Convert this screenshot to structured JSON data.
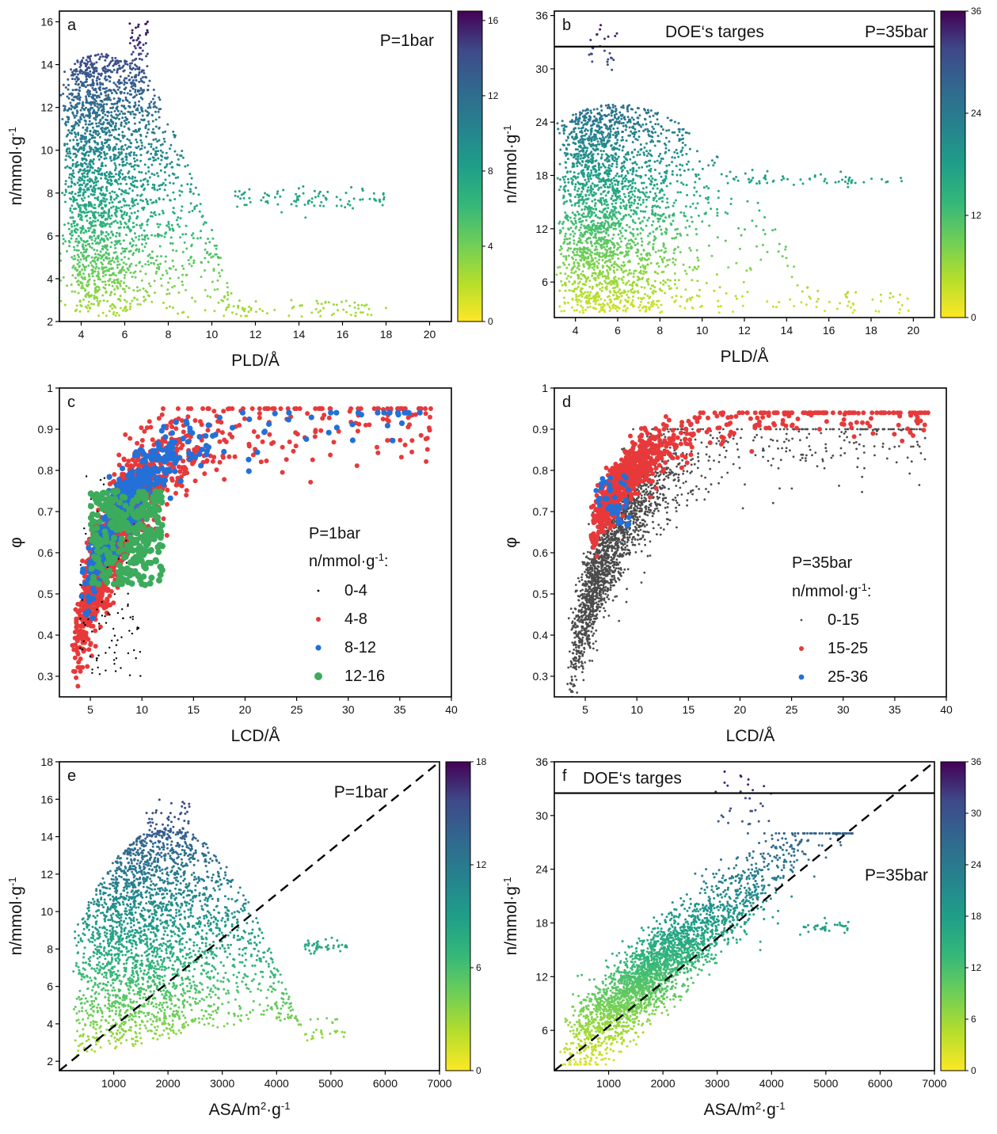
{
  "colors": {
    "viridis_low": "#fde725",
    "viridis_mid": "#21918c",
    "viridis_high": "#440154",
    "class_black": "#000000",
    "class_red": "#e8393a",
    "class_blue": "#2270d8",
    "class_green": "#3cab5c",
    "class_grey": "#4b4b4b"
  },
  "chart_data": [
    {
      "panel": "a",
      "type": "scatter",
      "xlabel": "PLD/Å",
      "ylabel": "n/mmol·g",
      "ylabel_sup": "-1",
      "annotation": "P=1bar",
      "xlim": [
        3,
        21
      ],
      "ylim": [
        2,
        16.5
      ],
      "xticks": [
        4,
        6,
        8,
        10,
        12,
        14,
        16,
        18,
        20
      ],
      "yticks": [
        2,
        4,
        6,
        8,
        10,
        12,
        14,
        16
      ],
      "colorbar": {
        "range": [
          0,
          16.5
        ],
        "ticks": [
          0,
          4,
          8,
          12,
          16
        ]
      },
      "color_by": "y",
      "x_peak": 5,
      "y_max": 16.1,
      "points_note": "dense cloud of several thousand MOF structures, peaked near PLD 4-7 Å"
    },
    {
      "panel": "b",
      "type": "scatter",
      "xlabel": "PLD/Å",
      "ylabel": "n/mmol·g",
      "ylabel_sup": "-1",
      "annotation": "P=35bar",
      "target_label": "DOE‘s targes",
      "target_y": 32.5,
      "xlim": [
        3,
        21
      ],
      "ylim": [
        2,
        36.5
      ],
      "xticks": [
        4,
        6,
        8,
        10,
        12,
        14,
        16,
        18,
        20
      ],
      "yticks": [
        6,
        12,
        18,
        24,
        30,
        36
      ],
      "colorbar": {
        "range": [
          0,
          36
        ],
        "ticks": [
          0,
          12,
          24,
          36
        ]
      },
      "color_by": "y",
      "x_peak": 5.5,
      "y_max": 36
    },
    {
      "panel": "c",
      "type": "scatter",
      "xlabel": "LCD/Å",
      "ylabel": "φ",
      "xlim": [
        2,
        40
      ],
      "ylim": [
        0.25,
        1.0
      ],
      "xticks": [
        5,
        10,
        15,
        20,
        25,
        30,
        35,
        40
      ],
      "yticks": [
        0.3,
        0.4,
        0.5,
        0.6,
        0.7,
        0.8,
        0.9,
        1.0
      ],
      "legend": {
        "title": "P=1bar",
        "subtitle": "n/mmol·g",
        "subtitle_sup": "-1",
        "subtitle_end": ":",
        "entries": [
          {
            "label": "0-4",
            "color": "#000000"
          },
          {
            "label": "4-8",
            "color": "#e8393a"
          },
          {
            "label": "8-12",
            "color": "#2270d8"
          },
          {
            "label": "12-16",
            "color": "#3cab5c"
          }
        ]
      }
    },
    {
      "panel": "d",
      "type": "scatter",
      "xlabel": "LCD/Å",
      "ylabel": "φ",
      "xlim": [
        2,
        40
      ],
      "ylim": [
        0.25,
        1.0
      ],
      "xticks": [
        5,
        10,
        15,
        20,
        25,
        30,
        35,
        40
      ],
      "yticks": [
        0.3,
        0.4,
        0.5,
        0.6,
        0.7,
        0.8,
        0.9,
        1.0
      ],
      "legend": {
        "title": "P=35bar",
        "subtitle": "n/mmol·g",
        "subtitle_sup": "-1",
        "subtitle_end": ":",
        "entries": [
          {
            "label": "0-15",
            "color": "#4b4b4b"
          },
          {
            "label": "15-25",
            "color": "#e8393a"
          },
          {
            "label": "25-36",
            "color": "#2270d8"
          }
        ]
      }
    },
    {
      "panel": "e",
      "type": "scatter",
      "xlabel": "ASA/m",
      "xlabel_sup": "2",
      "xlabel_end": "·g",
      "xlabel_sup2": "-1",
      "ylabel": "n/mmol·g",
      "ylabel_sup": "-1",
      "annotation": "P=1bar",
      "xlim": [
        0,
        7000
      ],
      "ylim": [
        1.5,
        18
      ],
      "xticks": [
        1000,
        2000,
        3000,
        4000,
        5000,
        6000,
        7000
      ],
      "yticks": [
        2,
        4,
        6,
        8,
        10,
        12,
        14,
        16,
        18
      ],
      "colorbar": {
        "range": [
          0,
          18
        ],
        "ticks": [
          0,
          6,
          12,
          18
        ]
      },
      "color_by": "y",
      "diagonal": [
        [
          0,
          1.5
        ],
        [
          7000,
          18
        ]
      ]
    },
    {
      "panel": "f",
      "type": "scatter",
      "xlabel": "ASA/m",
      "xlabel_sup": "2",
      "xlabel_end": "·g",
      "xlabel_sup2": "-1",
      "ylabel": "n/mmol·g",
      "ylabel_sup": "-1",
      "annotation": "P=35bar",
      "target_label": "DOE‘s targes",
      "target_y": 32.5,
      "xlim": [
        0,
        7000
      ],
      "ylim": [
        1.5,
        36
      ],
      "xticks": [
        1000,
        2000,
        3000,
        4000,
        5000,
        6000,
        7000
      ],
      "yticks": [
        6,
        12,
        18,
        24,
        30,
        36
      ],
      "colorbar": {
        "range": [
          0,
          36
        ],
        "ticks": [
          0,
          6,
          12,
          18,
          24,
          30,
          36
        ]
      },
      "color_by": "y",
      "diagonal": [
        [
          0,
          1.5
        ],
        [
          7000,
          36
        ]
      ]
    }
  ]
}
